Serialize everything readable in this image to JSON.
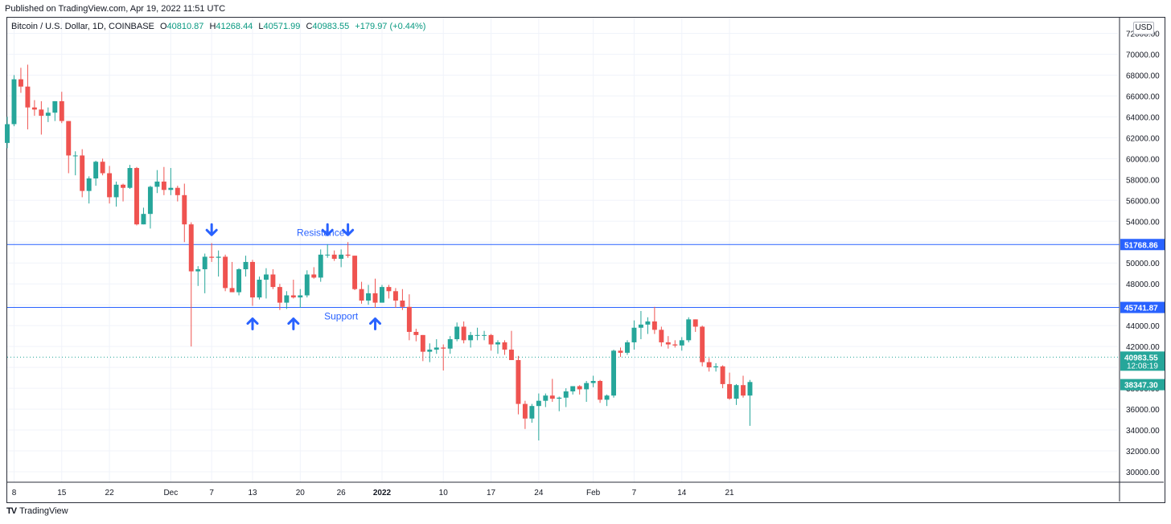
{
  "header": {
    "published": "Published on TradingView.com, Apr 19, 2022 11:51 UTC"
  },
  "legend": {
    "symbol": "Bitcoin / U.S. Dollar, 1D, COINBASE",
    "o_label": "O",
    "o_value": "40810.87",
    "h_label": "H",
    "h_value": "41268.44",
    "l_label": "L",
    "l_value": "40571.99",
    "c_label": "C",
    "c_value": "40983.55",
    "change": "+179.97 (+0.44%)"
  },
  "currency": "USD",
  "footer": {
    "logo": "TV",
    "brand": "TradingView"
  },
  "colors": {
    "up": "#26a69a",
    "down": "#ef5350",
    "level": "#2962ff",
    "arrow": "#2962ff",
    "grid": "#f0f3fa",
    "price_label": "#2962ff"
  },
  "chart_data": {
    "type": "candlestick",
    "ylim": [
      29000,
      73500
    ],
    "y_ticks": [
      30000,
      32000,
      34000,
      36000,
      38000,
      40000,
      42000,
      44000,
      46000,
      48000,
      50000,
      52000,
      54000,
      56000,
      58000,
      60000,
      62000,
      64000,
      66000,
      68000,
      70000,
      72000
    ],
    "y_tick_labels": [
      "30000.00",
      "32000.00",
      "34000.00",
      "36000.00",
      "38000.00",
      "40000.00",
      "42000.00",
      "44000.00",
      "46000.00",
      "48000.00",
      "50000.00",
      "52000.00",
      "54000.00",
      "56000.00",
      "58000.00",
      "60000.00",
      "62000.00",
      "64000.00",
      "66000.00",
      "68000.00",
      "70000.00",
      "72000.00"
    ],
    "x_range_dates": [
      "2021-11-07",
      "2022-04-19"
    ],
    "x_ticks": [
      {
        "date": "2021-11-08",
        "label": "8"
      },
      {
        "date": "2021-11-15",
        "label": "15"
      },
      {
        "date": "2021-11-22",
        "label": "22"
      },
      {
        "date": "2021-12-01",
        "label": "Dec"
      },
      {
        "date": "2021-12-07",
        "label": "7"
      },
      {
        "date": "2021-12-13",
        "label": "13"
      },
      {
        "date": "2021-12-20",
        "label": "20"
      },
      {
        "date": "2021-12-26",
        "label": "26"
      },
      {
        "date": "2022-01-01",
        "label": "2022"
      },
      {
        "date": "2022-01-10",
        "label": "10"
      },
      {
        "date": "2022-01-17",
        "label": "17"
      },
      {
        "date": "2022-01-24",
        "label": "24"
      },
      {
        "date": "2022-02-01",
        "label": "Feb"
      },
      {
        "date": "2022-02-07",
        "label": "7"
      },
      {
        "date": "2022-02-14",
        "label": "14"
      },
      {
        "date": "2022-02-21",
        "label": "21"
      }
    ],
    "candles": [
      [
        "2021-11-07",
        61500,
        64000,
        61000,
        63300
      ],
      [
        "2021-11-08",
        63300,
        68000,
        63100,
        67600
      ],
      [
        "2021-11-09",
        67600,
        68700,
        66300,
        66900
      ],
      [
        "2021-11-10",
        66900,
        69000,
        62800,
        64900
      ],
      [
        "2021-11-11",
        64900,
        65600,
        64100,
        64700
      ],
      [
        "2021-11-12",
        64700,
        65500,
        62300,
        64100
      ],
      [
        "2021-11-13",
        64100,
        64900,
        63500,
        64400
      ],
      [
        "2021-11-14",
        64400,
        65500,
        63600,
        65500
      ],
      [
        "2021-11-15",
        65500,
        66400,
        63400,
        63600
      ],
      [
        "2021-11-16",
        63600,
        63600,
        58600,
        60300
      ],
      [
        "2021-11-17",
        60300,
        60700,
        58400,
        60300
      ],
      [
        "2021-11-18",
        60300,
        60900,
        56300,
        56900
      ],
      [
        "2021-11-19",
        56900,
        58300,
        55700,
        58100
      ],
      [
        "2021-11-20",
        58100,
        59800,
        57400,
        59700
      ],
      [
        "2021-11-21",
        59700,
        60000,
        58400,
        58600
      ],
      [
        "2021-11-22",
        58600,
        59300,
        55700,
        56300
      ],
      [
        "2021-11-23",
        56300,
        57800,
        55400,
        57500
      ],
      [
        "2021-11-24",
        57500,
        57600,
        55900,
        57200
      ],
      [
        "2021-11-25",
        57200,
        59400,
        57100,
        59100
      ],
      [
        "2021-11-26",
        59100,
        59200,
        53600,
        53700
      ],
      [
        "2021-11-27",
        53700,
        55300,
        53700,
        54700
      ],
      [
        "2021-11-28",
        54700,
        57400,
        53300,
        57300
      ],
      [
        "2021-11-29",
        57300,
        58900,
        56700,
        57800
      ],
      [
        "2021-11-30",
        57800,
        59200,
        56500,
        57000
      ],
      [
        "2021-12-01",
        57000,
        59100,
        56500,
        57200
      ],
      [
        "2021-12-02",
        57200,
        57400,
        55900,
        56500
      ],
      [
        "2021-12-03",
        56500,
        57600,
        52000,
        53700
      ],
      [
        "2021-12-04",
        53700,
        53900,
        42000,
        49200
      ],
      [
        "2021-12-05",
        49200,
        49700,
        47800,
        49400
      ],
      [
        "2021-12-06",
        49400,
        50900,
        47100,
        50600
      ],
      [
        "2021-12-07",
        50600,
        51900,
        50100,
        50500
      ],
      [
        "2021-12-08",
        50500,
        51200,
        48700,
        50600
      ],
      [
        "2021-12-09",
        50600,
        50800,
        47300,
        47600
      ],
      [
        "2021-12-10",
        47600,
        50100,
        47300,
        47200
      ],
      [
        "2021-12-11",
        47200,
        49500,
        46900,
        49400
      ],
      [
        "2021-12-12",
        49400,
        50700,
        48700,
        50100
      ],
      [
        "2021-12-13",
        50100,
        50300,
        45900,
        46700
      ],
      [
        "2021-12-14",
        46700,
        48700,
        46500,
        48400
      ],
      [
        "2021-12-15",
        48400,
        49500,
        46600,
        48900
      ],
      [
        "2021-12-16",
        48900,
        49400,
        47500,
        47700
      ],
      [
        "2021-12-17",
        47700,
        48000,
        45500,
        46200
      ],
      [
        "2021-12-18",
        46200,
        47300,
        45600,
        46900
      ],
      [
        "2021-12-19",
        46900,
        48400,
        46600,
        46700
      ],
      [
        "2021-12-20",
        46700,
        47500,
        45700,
        46900
      ],
      [
        "2021-12-21",
        46900,
        49300,
        46700,
        48900
      ],
      [
        "2021-12-22",
        48900,
        49600,
        48500,
        48600
      ],
      [
        "2021-12-23",
        48600,
        51300,
        48200,
        50800
      ],
      [
        "2021-12-24",
        50800,
        51800,
        50500,
        50800
      ],
      [
        "2021-12-25",
        50800,
        51200,
        50200,
        50400
      ],
      [
        "2021-12-26",
        50400,
        51300,
        49600,
        50800
      ],
      [
        "2021-12-27",
        50800,
        52000,
        50500,
        50700
      ],
      [
        "2021-12-28",
        50700,
        50700,
        47400,
        47500
      ],
      [
        "2021-12-29",
        47500,
        48200,
        46100,
        46400
      ],
      [
        "2021-12-30",
        46400,
        47900,
        46000,
        47100
      ],
      [
        "2021-12-31",
        47100,
        48500,
        45700,
        46200
      ],
      [
        "2022-01-01",
        46200,
        47900,
        46200,
        47700
      ],
      [
        "2022-01-02",
        47700,
        47900,
        46600,
        47300
      ],
      [
        "2022-01-03",
        47300,
        47600,
        45700,
        46400
      ],
      [
        "2022-01-04",
        46400,
        47500,
        45500,
        45800
      ],
      [
        "2022-01-05",
        45800,
        47000,
        42600,
        43400
      ],
      [
        "2022-01-06",
        43400,
        43700,
        42500,
        43100
      ],
      [
        "2022-01-07",
        43100,
        43100,
        40600,
        41500
      ],
      [
        "2022-01-08",
        41500,
        42300,
        40500,
        41700
      ],
      [
        "2022-01-09",
        41700,
        42700,
        41300,
        41900
      ],
      [
        "2022-01-10",
        41900,
        42200,
        39700,
        41800
      ],
      [
        "2022-01-11",
        41800,
        43000,
        41300,
        42700
      ],
      [
        "2022-01-12",
        42700,
        44300,
        42500,
        43900
      ],
      [
        "2022-01-13",
        43900,
        44400,
        42300,
        42600
      ],
      [
        "2022-01-14",
        42600,
        43400,
        41900,
        43100
      ],
      [
        "2022-01-15",
        43100,
        43800,
        42600,
        43100
      ],
      [
        "2022-01-16",
        43100,
        43500,
        42600,
        43100
      ],
      [
        "2022-01-17",
        43100,
        43200,
        41600,
        42200
      ],
      [
        "2022-01-18",
        42200,
        42600,
        41300,
        42400
      ],
      [
        "2022-01-19",
        42400,
        42600,
        41200,
        41700
      ],
      [
        "2022-01-20",
        41700,
        43500,
        40700,
        40700
      ],
      [
        "2022-01-21",
        40700,
        41100,
        35500,
        36500
      ],
      [
        "2022-01-22",
        36500,
        36800,
        34100,
        35100
      ],
      [
        "2022-01-23",
        35100,
        36500,
        34700,
        36300
      ],
      [
        "2022-01-24",
        36300,
        37500,
        33000,
        36800
      ],
      [
        "2022-01-25",
        36800,
        37500,
        36200,
        37300
      ],
      [
        "2022-01-26",
        37300,
        38900,
        36700,
        37000
      ],
      [
        "2022-01-27",
        37000,
        37200,
        35800,
        37100
      ],
      [
        "2022-01-28",
        37100,
        38000,
        36200,
        37700
      ],
      [
        "2022-01-29",
        37700,
        38200,
        37400,
        38200
      ],
      [
        "2022-01-30",
        38200,
        38300,
        37400,
        37900
      ],
      [
        "2022-01-31",
        37900,
        38700,
        36700,
        38500
      ],
      [
        "2022-02-01",
        38500,
        39200,
        38100,
        38700
      ],
      [
        "2022-02-02",
        38700,
        38800,
        36600,
        36900
      ],
      [
        "2022-02-03",
        36900,
        37400,
        36300,
        37300
      ],
      [
        "2022-02-04",
        37300,
        41700,
        37100,
        41600
      ],
      [
        "2022-02-05",
        41600,
        41900,
        41000,
        41400
      ],
      [
        "2022-02-06",
        41400,
        42600,
        41200,
        42400
      ],
      [
        "2022-02-07",
        42400,
        44500,
        41700,
        43800
      ],
      [
        "2022-02-08",
        43800,
        45400,
        42700,
        44100
      ],
      [
        "2022-02-09",
        44100,
        44800,
        43200,
        44400
      ],
      [
        "2022-02-10",
        44400,
        45800,
        43200,
        43600
      ],
      [
        "2022-02-11",
        43600,
        43900,
        42000,
        42400
      ],
      [
        "2022-02-12",
        42400,
        43000,
        41800,
        42200
      ],
      [
        "2022-02-13",
        42200,
        42600,
        41900,
        42100
      ],
      [
        "2022-02-14",
        42100,
        42900,
        41600,
        42600
      ],
      [
        "2022-02-15",
        42600,
        44800,
        42400,
        44600
      ],
      [
        "2022-02-16",
        44600,
        44600,
        43400,
        43900
      ],
      [
        "2022-02-17",
        43900,
        44000,
        40100,
        40500
      ],
      [
        "2022-02-18",
        40500,
        40900,
        39600,
        40000
      ],
      [
        "2022-02-19",
        40000,
        40400,
        39600,
        40100
      ],
      [
        "2022-02-20",
        40100,
        40200,
        38000,
        38400
      ],
      [
        "2022-02-21",
        38400,
        39500,
        36900,
        37000
      ],
      [
        "2022-02-22",
        37000,
        38400,
        36400,
        38300
      ],
      [
        "2022-02-23",
        38300,
        39200,
        37100,
        37300
      ],
      [
        "2022-02-24",
        37300,
        38800,
        34400,
        38600
      ]
    ],
    "levels": [
      {
        "name": "Resistance",
        "value": 51768.86,
        "label": "51768.86"
      },
      {
        "name": "Support",
        "value": 45741.87,
        "label": "45741.87"
      }
    ],
    "last_price": {
      "value": 40983.55,
      "label": "40983.55",
      "countdown": "12:08:19"
    },
    "current_price": {
      "value": 38347.3,
      "label": "38347.30"
    },
    "arrows": [
      {
        "date": "2021-12-07",
        "dir": "down"
      },
      {
        "date": "2021-12-24",
        "dir": "down"
      },
      {
        "date": "2021-12-27",
        "dir": "down"
      },
      {
        "date": "2021-12-13",
        "dir": "up"
      },
      {
        "date": "2021-12-19",
        "dir": "up"
      },
      {
        "date": "2021-12-31",
        "dir": "up"
      }
    ]
  }
}
